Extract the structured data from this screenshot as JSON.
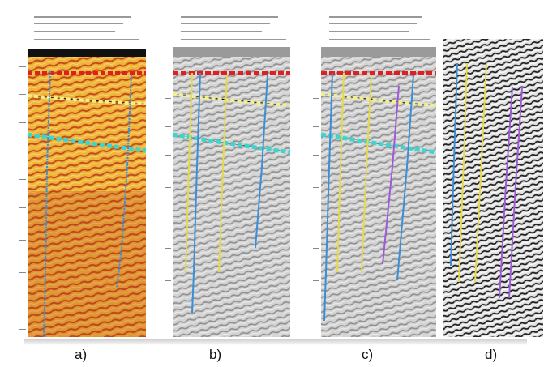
{
  "figure": {
    "captions": [
      "a)",
      "b)",
      "c)",
      "d)"
    ]
  },
  "colors": {
    "amplitude_warm": "#e8a21f",
    "amplitude_dark": "#b3361a",
    "seismic_gray": "#bdbdbd",
    "horizon_red": "#e02020",
    "horizon_yellow": "#f2ef8c",
    "horizon_cyan": "#3ad6d0",
    "well_blue": "#3a8fd8",
    "well_yellow": "#e6d94a",
    "well_purple": "#a05ad8"
  },
  "panels": [
    {
      "id": "a",
      "style": "amplitude-color",
      "horizons": [
        "red",
        "yellow",
        "cyan"
      ],
      "wells": [
        "blue",
        "blue"
      ]
    },
    {
      "id": "b",
      "style": "grayscale",
      "horizons": [
        "red",
        "yellow",
        "cyan"
      ],
      "wells": [
        "yellow",
        "blue",
        "yellow",
        "blue"
      ]
    },
    {
      "id": "c",
      "style": "grayscale",
      "horizons": [
        "red",
        "yellow",
        "cyan"
      ],
      "wells": [
        "blue",
        "yellow",
        "yellow",
        "purple",
        "blue"
      ]
    },
    {
      "id": "d",
      "style": "high-contrast-grayscale",
      "horizons": [],
      "wells": [
        "blue",
        "yellow",
        "yellow",
        "purple",
        "purple"
      ]
    }
  ]
}
